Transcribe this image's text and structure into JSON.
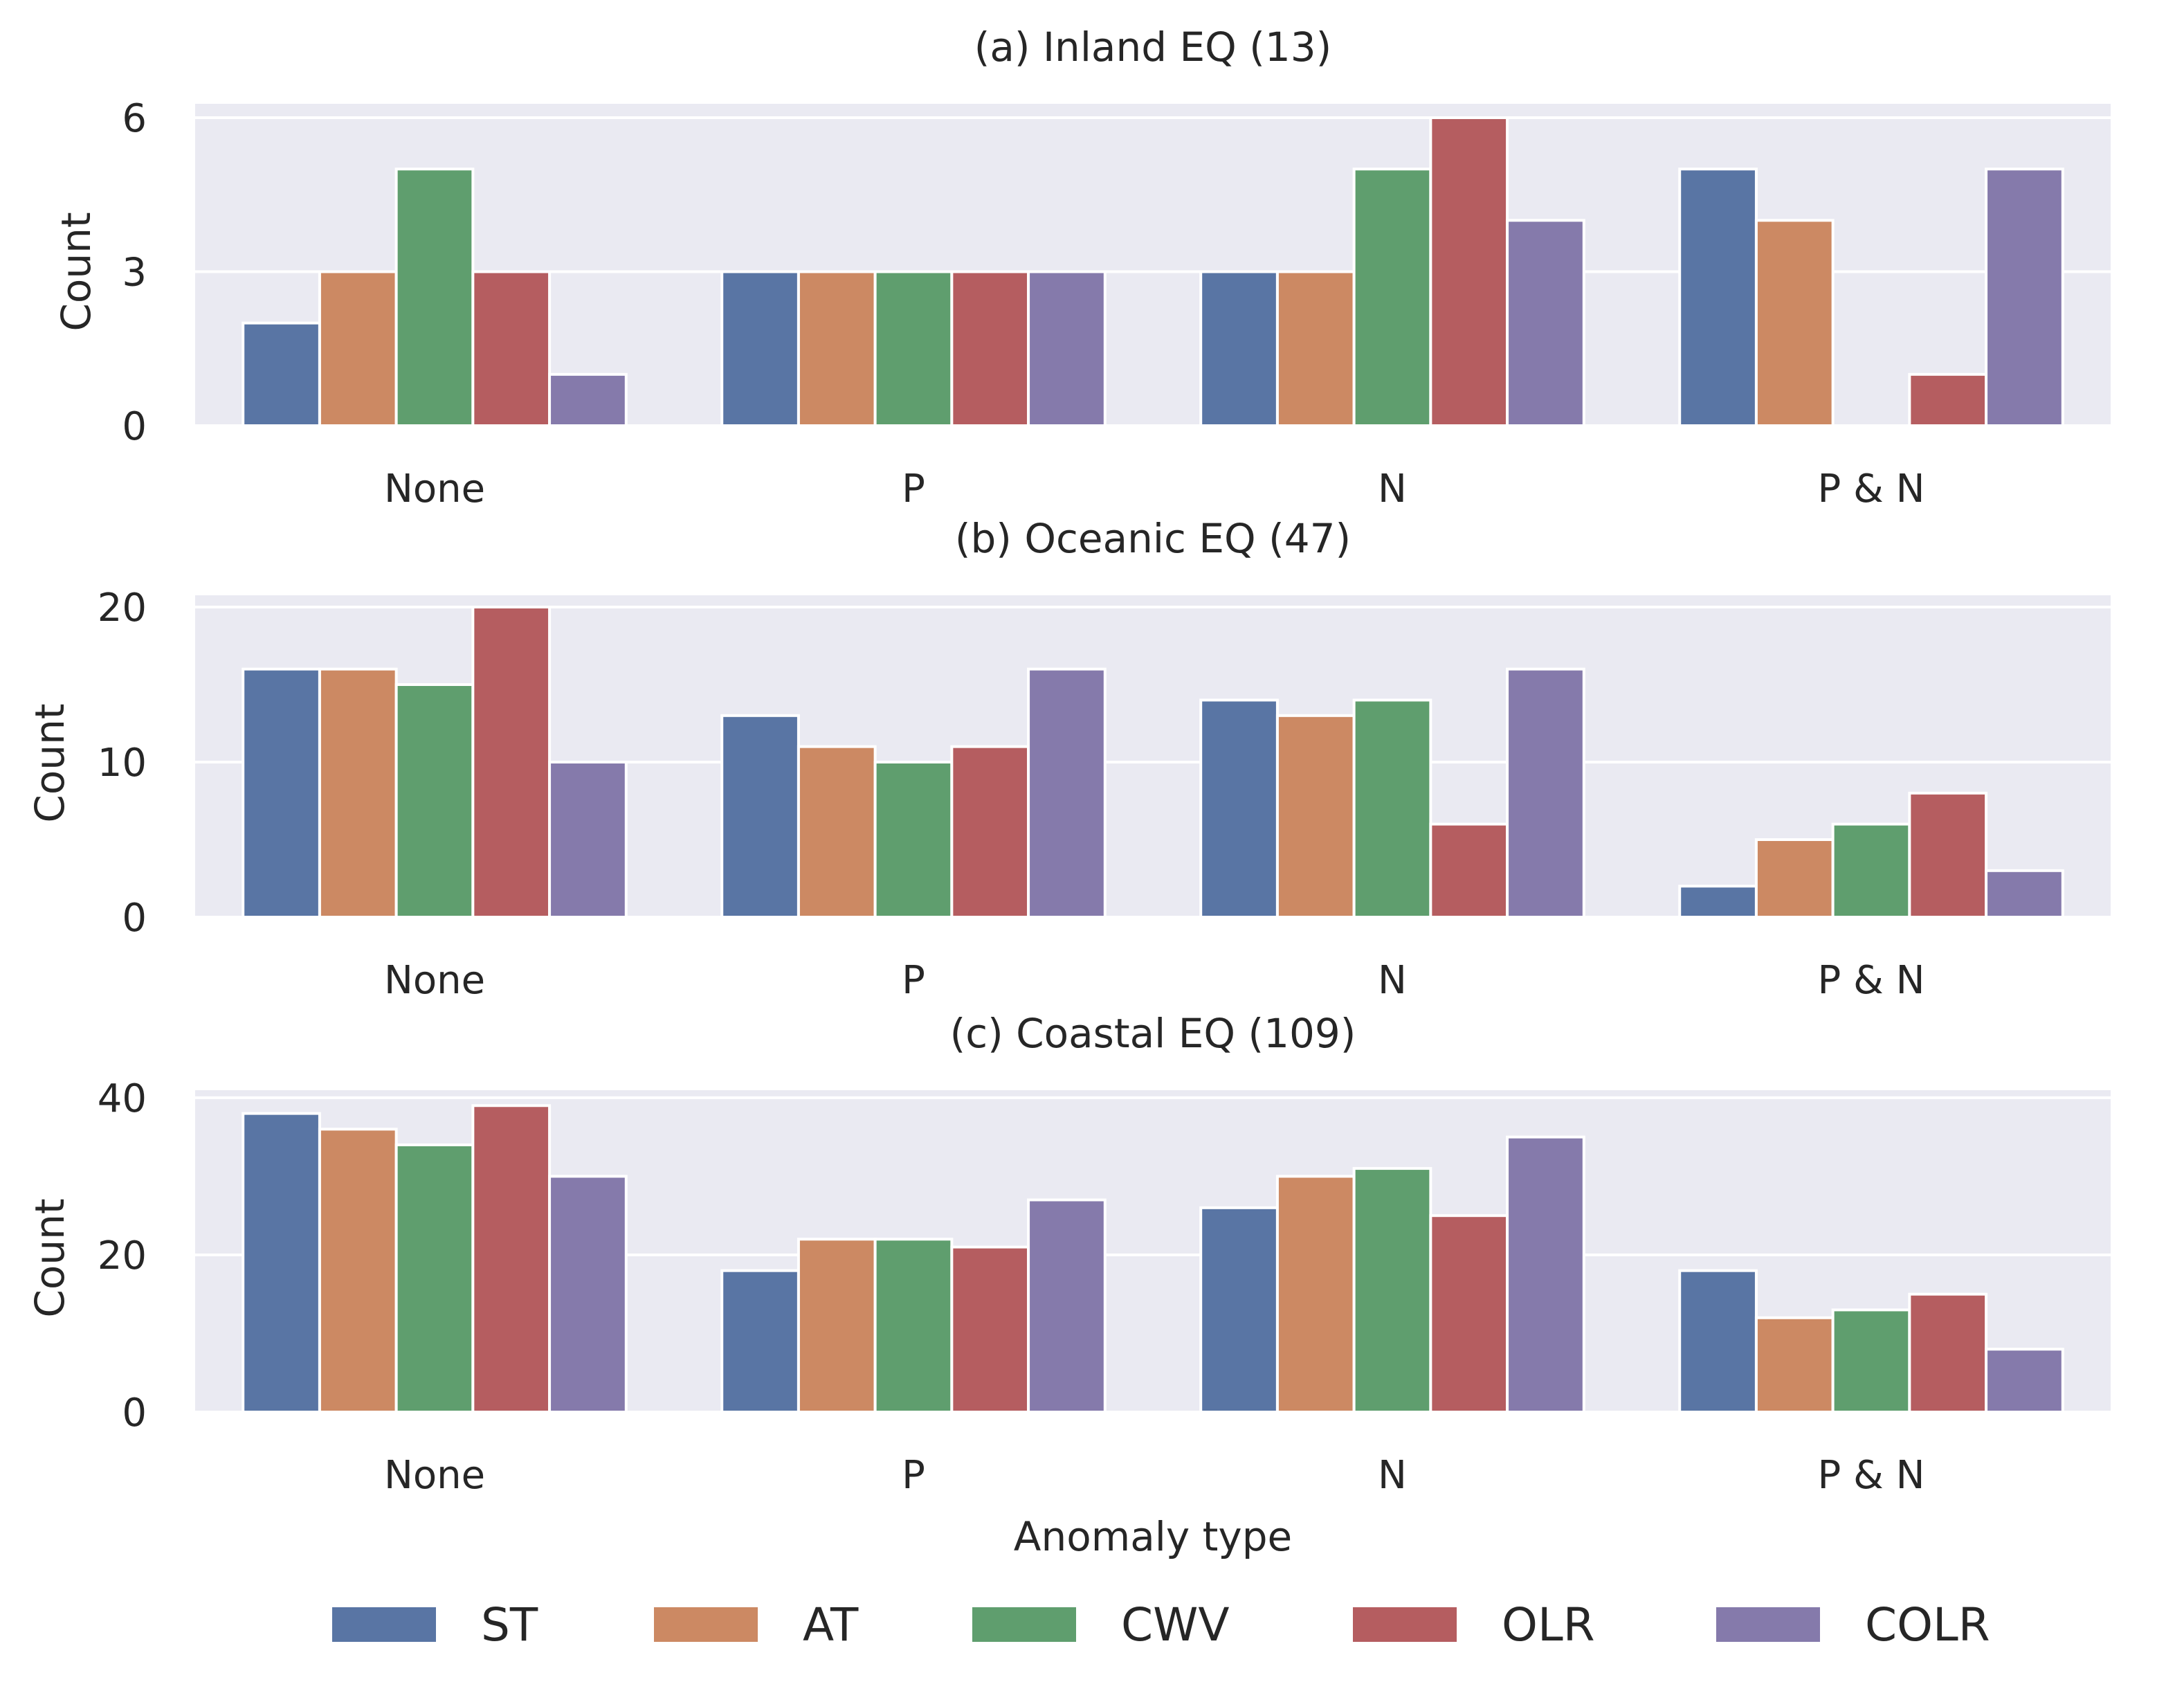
{
  "chart_data": {
    "type": "bar",
    "xlabel": "Anomaly type",
    "categories": [
      "None",
      "P",
      "N",
      "P & N"
    ],
    "legend": {
      "placement": "bottom",
      "entries": [
        "ST",
        "AT",
        "CWV",
        "OLR",
        "COLR"
      ]
    },
    "colors": [
      "#5975A4",
      "#CC8963",
      "#5F9E6E",
      "#B55D60",
      "#857AAB"
    ],
    "grid": true,
    "panels": [
      {
        "title": "(a) Inland EQ (13)",
        "ylabel": "Count",
        "ylim": [
          0,
          6.27
        ],
        "yticks": [
          0,
          3,
          6
        ],
        "series": [
          {
            "name": "ST",
            "values": [
              2,
              3,
              3,
              5
            ]
          },
          {
            "name": "AT",
            "values": [
              3,
              3,
              3,
              4
            ]
          },
          {
            "name": "CWV",
            "values": [
              5,
              3,
              5,
              0
            ]
          },
          {
            "name": "OLR",
            "values": [
              3,
              3,
              6,
              1
            ]
          },
          {
            "name": "COLR",
            "values": [
              1,
              3,
              4,
              5
            ]
          }
        ]
      },
      {
        "title": "(b) Oceanic EQ (47)",
        "ylabel": "Count",
        "ylim": [
          0,
          20.76
        ],
        "yticks": [
          0,
          10,
          20
        ],
        "series": [
          {
            "name": "ST",
            "values": [
              16,
              13,
              14,
              2
            ]
          },
          {
            "name": "AT",
            "values": [
              16,
              11,
              13,
              5
            ]
          },
          {
            "name": "CWV",
            "values": [
              15,
              10,
              14,
              6
            ]
          },
          {
            "name": "OLR",
            "values": [
              20,
              11,
              6,
              8
            ]
          },
          {
            "name": "COLR",
            "values": [
              10,
              16,
              16,
              3
            ]
          }
        ]
      },
      {
        "title": "(c) Coastal EQ (109)",
        "ylabel": "Count",
        "ylim": [
          0,
          40.96
        ],
        "yticks": [
          0,
          20,
          40
        ],
        "series": [
          {
            "name": "ST",
            "values": [
              38,
              18,
              26,
              18
            ]
          },
          {
            "name": "AT",
            "values": [
              36,
              22,
              30,
              12
            ]
          },
          {
            "name": "CWV",
            "values": [
              34,
              22,
              31,
              13
            ]
          },
          {
            "name": "OLR",
            "values": [
              39,
              21,
              25,
              15
            ]
          },
          {
            "name": "COLR",
            "values": [
              30,
              27,
              35,
              8
            ]
          }
        ]
      }
    ]
  }
}
